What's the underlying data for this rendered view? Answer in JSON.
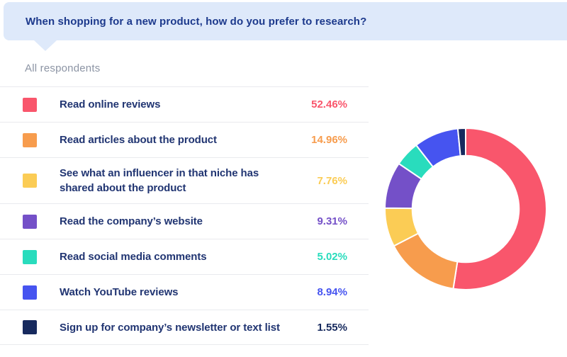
{
  "header": {
    "title": "When shopping for a new product, how do you prefer to research?",
    "bg_color": "#dee9fa",
    "text_color": "#1c398c"
  },
  "subtitle": "All respondents",
  "legend": {
    "items": [
      {
        "label": "Read online reviews",
        "value": "52.46%",
        "color": "#f9566c"
      },
      {
        "label": "Read articles about the product",
        "value": "14.96%",
        "color": "#f79c4d"
      },
      {
        "label": "See what an influencer in that niche has\nshared about the product",
        "value": "7.76%",
        "color": "#fbcc55"
      },
      {
        "label": "Read the company’s website",
        "value": "9.31%",
        "color": "#7450c8"
      },
      {
        "label": "Read social media comments",
        "value": "5.02%",
        "color": "#29dcbd"
      },
      {
        "label": "Watch YouTube reviews",
        "value": "8.94%",
        "color": "#4654f0"
      },
      {
        "label": "Sign up for company’s newsletter or text list",
        "value": "1.55%",
        "color": "#172a5e"
      }
    ]
  },
  "chart_data": {
    "type": "pie",
    "donut": true,
    "title": "When shopping for a new product, how do you prefer to research?",
    "categories": [
      "Read online reviews",
      "Read articles about the product",
      "See what an influencer in that niche has shared about the product",
      "Read the company’s website",
      "Read social media comments",
      "Watch YouTube reviews",
      "Sign up for company’s newsletter or text list"
    ],
    "values": [
      52.46,
      14.96,
      7.76,
      9.31,
      5.02,
      8.94,
      1.55
    ],
    "colors": [
      "#f9566c",
      "#f79c4d",
      "#fbcc55",
      "#7450c8",
      "#29dcbd",
      "#4654f0",
      "#172a5e"
    ],
    "start_angle_deg": 0,
    "direction": "clockwise",
    "inner_ratio": 0.66,
    "segment_gap_color": "#ffffff",
    "legend_position": "left"
  }
}
